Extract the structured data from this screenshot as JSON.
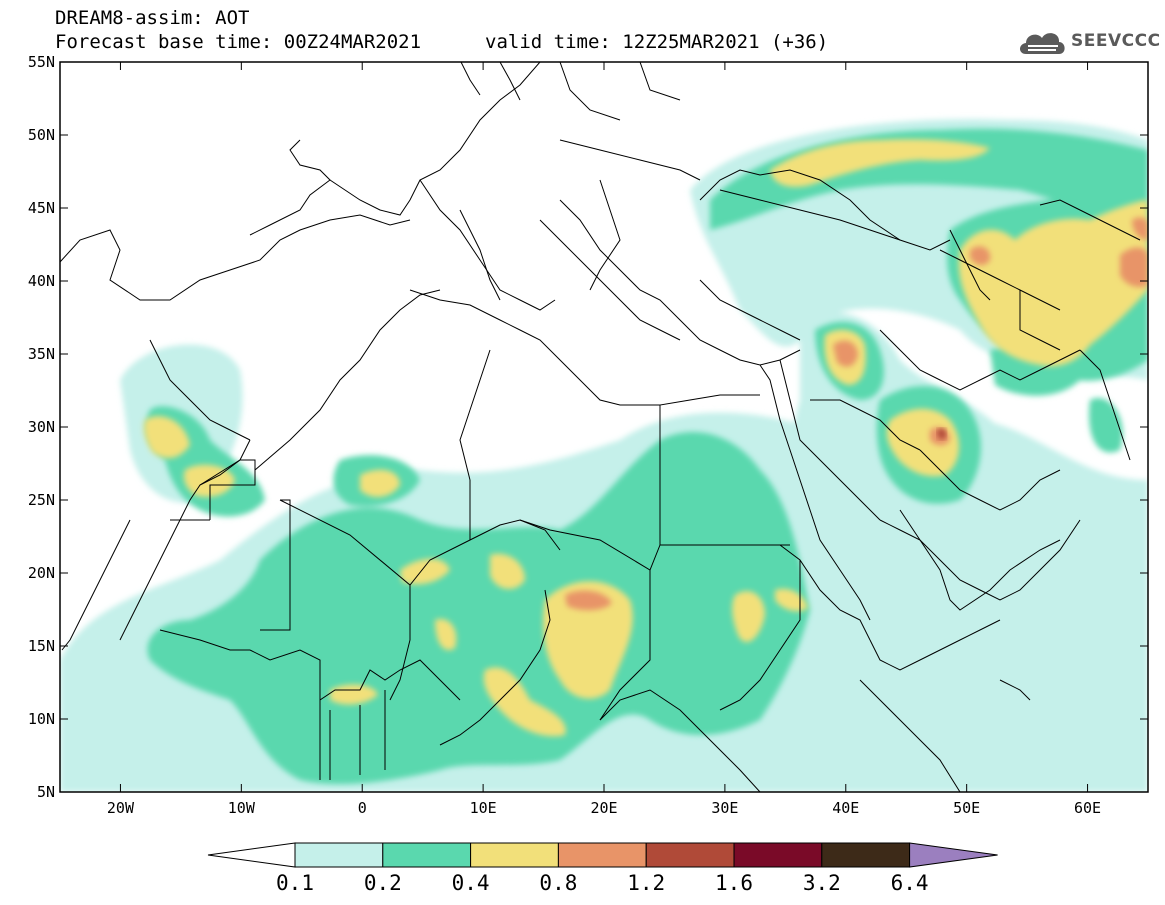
{
  "header": {
    "title": "DREAM8-assim: AOT",
    "base_time": "Forecast base time: 00Z24MAR2021",
    "valid_time": "valid time: 12Z25MAR2021 (+36)",
    "logo_text": "SEEVCCC"
  },
  "map": {
    "lon_range": [
      -25,
      65
    ],
    "lat_range": [
      5,
      55
    ],
    "lat_ticks": [
      {
        "value": 55,
        "label": "55N"
      },
      {
        "value": 50,
        "label": "50N"
      },
      {
        "value": 45,
        "label": "45N"
      },
      {
        "value": 40,
        "label": "40N"
      },
      {
        "value": 35,
        "label": "35N"
      },
      {
        "value": 30,
        "label": "30N"
      },
      {
        "value": 25,
        "label": "25N"
      },
      {
        "value": 20,
        "label": "20N"
      },
      {
        "value": 15,
        "label": "15N"
      },
      {
        "value": 10,
        "label": "10N"
      },
      {
        "value": 5,
        "label": "5N"
      }
    ],
    "lon_ticks": [
      {
        "value": -20,
        "label": "20W"
      },
      {
        "value": -10,
        "label": "10W"
      },
      {
        "value": 0,
        "label": "0"
      },
      {
        "value": 10,
        "label": "10E"
      },
      {
        "value": 20,
        "label": "20E"
      },
      {
        "value": 30,
        "label": "30E"
      },
      {
        "value": 40,
        "label": "40E"
      },
      {
        "value": 50,
        "label": "50E"
      },
      {
        "value": 60,
        "label": "60E"
      }
    ]
  },
  "colorbar": {
    "labels": [
      "0.1",
      "0.2",
      "0.4",
      "0.8",
      "1.2",
      "1.6",
      "3.2",
      "6.4"
    ],
    "colors": [
      "#c5f0ea",
      "#5ad8ae",
      "#f2e07a",
      "#e89468",
      "#b04a38",
      "#7a0a28",
      "#3d2a18"
    ],
    "low_color": "#ffffff",
    "high_color": "#9b7fbf"
  },
  "colors": {
    "very_light": "#c5f0ea",
    "light": "#5ad8ae",
    "medium": "#f2e07a",
    "high": "#e89468",
    "very_high": "#b04a38"
  }
}
